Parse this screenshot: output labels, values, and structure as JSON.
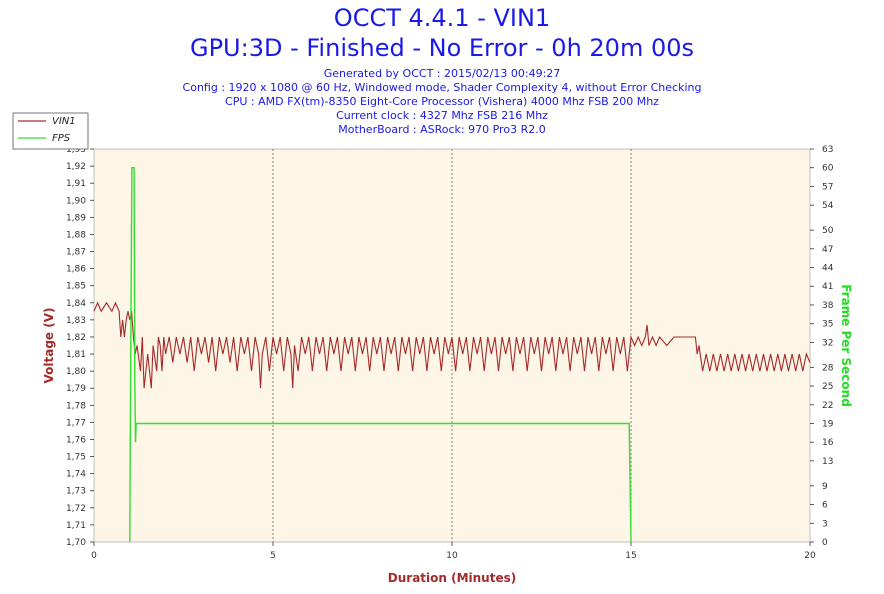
{
  "header": {
    "title": "OCCT 4.4.1 - VIN1",
    "subtitle": "GPU:3D - Finished - No Error - 0h 20m 00s",
    "info_lines": [
      "Generated by OCCT : 2015/02/13 00:49:27",
      "Config : 1920 x 1080 @ 60 Hz, Windowed mode, Shader Complexity 4, without Error Checking",
      "CPU : AMD FX(tm)-8350 Eight-Core Processor (Vishera) 4000 Mhz FSB 200 Mhz",
      "Current clock : 4327 Mhz FSB 216 Mhz",
      "MotherBoard : ASRock: 970 Pro3 R2.0"
    ]
  },
  "colors": {
    "vin1": "#a52a2a",
    "fps": "#33dd33",
    "plot_bg": "#fdf5e6",
    "grid": "#555555",
    "axis_title_left": "#a52a2a",
    "axis_title_right": "#22dd22",
    "axis_title_x": "#a52a2a",
    "title": "#1a1ae6"
  },
  "chart_data": {
    "type": "line",
    "title": "OCCT 4.4.1 - VIN1",
    "xlabel": "Duration (Minutes)",
    "ylabel": "Voltage (V)",
    "y2label": "Frame Per Second",
    "xlim": [
      0,
      20
    ],
    "ylim": [
      1.7,
      1.93
    ],
    "y2lim": [
      0,
      63
    ],
    "x_ticks": [
      "0",
      "5",
      "10",
      "15",
      "20"
    ],
    "y_ticks": [
      "1,70",
      "1,71",
      "1,72",
      "1,73",
      "1,74",
      "1,75",
      "1,76",
      "1,77",
      "1,78",
      "1,79",
      "1,80",
      "1,81",
      "1,82",
      "1,83",
      "1,84",
      "1,85",
      "1,86",
      "1,87",
      "1,88",
      "1,89",
      "1,90",
      "1,91",
      "1,92",
      "1,93"
    ],
    "y2_ticks": [
      "0",
      "3",
      "6",
      "9",
      "13",
      "16",
      "19",
      "22",
      "25",
      "28",
      "32",
      "35",
      "38",
      "41",
      "44",
      "47",
      "50",
      "54",
      "57",
      "60",
      "63"
    ],
    "grid": "vertical dashed at x ticks",
    "legend": [
      "VIN1",
      "FPS"
    ],
    "legend_position": "top-left, outside plot",
    "series": [
      {
        "name": "VIN1",
        "axis": "left",
        "points": [
          [
            0,
            1.835
          ],
          [
            0.1,
            1.84
          ],
          [
            0.2,
            1.835
          ],
          [
            0.35,
            1.84
          ],
          [
            0.5,
            1.835
          ],
          [
            0.6,
            1.84
          ],
          [
            0.7,
            1.835
          ],
          [
            0.75,
            1.82
          ],
          [
            0.8,
            1.83
          ],
          [
            0.85,
            1.82
          ],
          [
            0.9,
            1.83
          ],
          [
            0.95,
            1.835
          ],
          [
            1.0,
            1.83
          ],
          [
            1.05,
            1.835
          ],
          [
            1.1,
            1.82
          ],
          [
            1.15,
            1.81
          ],
          [
            1.2,
            1.815
          ],
          [
            1.3,
            1.8
          ],
          [
            1.35,
            1.82
          ],
          [
            1.4,
            1.79
          ],
          [
            1.5,
            1.81
          ],
          [
            1.55,
            1.8
          ],
          [
            1.6,
            1.79
          ],
          [
            1.65,
            1.815
          ],
          [
            1.75,
            1.8
          ],
          [
            1.8,
            1.82
          ],
          [
            1.85,
            1.815
          ],
          [
            1.9,
            1.8
          ],
          [
            1.95,
            1.82
          ],
          [
            2.0,
            1.81
          ],
          [
            2.1,
            1.82
          ],
          [
            2.2,
            1.805
          ],
          [
            2.3,
            1.82
          ],
          [
            2.4,
            1.81
          ],
          [
            2.5,
            1.82
          ],
          [
            2.6,
            1.805
          ],
          [
            2.7,
            1.82
          ],
          [
            2.8,
            1.8
          ],
          [
            2.9,
            1.82
          ],
          [
            3.0,
            1.81
          ],
          [
            3.1,
            1.82
          ],
          [
            3.2,
            1.805
          ],
          [
            3.3,
            1.82
          ],
          [
            3.4,
            1.8
          ],
          [
            3.5,
            1.82
          ],
          [
            3.6,
            1.81
          ],
          [
            3.7,
            1.82
          ],
          [
            3.8,
            1.805
          ],
          [
            3.9,
            1.82
          ],
          [
            4.0,
            1.8
          ],
          [
            4.1,
            1.82
          ],
          [
            4.2,
            1.81
          ],
          [
            4.3,
            1.82
          ],
          [
            4.4,
            1.8
          ],
          [
            4.5,
            1.82
          ],
          [
            4.6,
            1.81
          ],
          [
            4.65,
            1.79
          ],
          [
            4.7,
            1.81
          ],
          [
            4.8,
            1.82
          ],
          [
            4.9,
            1.8
          ],
          [
            5.0,
            1.82
          ],
          [
            5.1,
            1.81
          ],
          [
            5.2,
            1.82
          ],
          [
            5.3,
            1.8
          ],
          [
            5.4,
            1.82
          ],
          [
            5.5,
            1.81
          ],
          [
            5.55,
            1.79
          ],
          [
            5.6,
            1.815
          ],
          [
            5.7,
            1.8
          ],
          [
            5.8,
            1.82
          ],
          [
            5.9,
            1.81
          ],
          [
            6.0,
            1.82
          ],
          [
            6.1,
            1.8
          ],
          [
            6.2,
            1.82
          ],
          [
            6.3,
            1.81
          ],
          [
            6.4,
            1.82
          ],
          [
            6.5,
            1.8
          ],
          [
            6.6,
            1.82
          ],
          [
            6.7,
            1.81
          ],
          [
            6.8,
            1.82
          ],
          [
            6.9,
            1.8
          ],
          [
            7.0,
            1.82
          ],
          [
            7.1,
            1.81
          ],
          [
            7.2,
            1.82
          ],
          [
            7.3,
            1.8
          ],
          [
            7.4,
            1.82
          ],
          [
            7.5,
            1.81
          ],
          [
            7.6,
            1.82
          ],
          [
            7.7,
            1.8
          ],
          [
            7.8,
            1.82
          ],
          [
            7.9,
            1.81
          ],
          [
            8.0,
            1.82
          ],
          [
            8.1,
            1.8
          ],
          [
            8.2,
            1.82
          ],
          [
            8.3,
            1.81
          ],
          [
            8.4,
            1.82
          ],
          [
            8.5,
            1.8
          ],
          [
            8.6,
            1.82
          ],
          [
            8.7,
            1.81
          ],
          [
            8.8,
            1.82
          ],
          [
            8.9,
            1.8
          ],
          [
            9.0,
            1.82
          ],
          [
            9.1,
            1.81
          ],
          [
            9.2,
            1.82
          ],
          [
            9.3,
            1.8
          ],
          [
            9.4,
            1.82
          ],
          [
            9.5,
            1.81
          ],
          [
            9.6,
            1.82
          ],
          [
            9.7,
            1.8
          ],
          [
            9.8,
            1.82
          ],
          [
            9.9,
            1.81
          ],
          [
            10.0,
            1.82
          ],
          [
            10.1,
            1.8
          ],
          [
            10.2,
            1.82
          ],
          [
            10.3,
            1.81
          ],
          [
            10.4,
            1.82
          ],
          [
            10.5,
            1.8
          ],
          [
            10.6,
            1.82
          ],
          [
            10.7,
            1.81
          ],
          [
            10.8,
            1.82
          ],
          [
            10.9,
            1.8
          ],
          [
            11.0,
            1.82
          ],
          [
            11.1,
            1.81
          ],
          [
            11.2,
            1.82
          ],
          [
            11.3,
            1.8
          ],
          [
            11.4,
            1.82
          ],
          [
            11.5,
            1.81
          ],
          [
            11.6,
            1.82
          ],
          [
            11.7,
            1.8
          ],
          [
            11.8,
            1.82
          ],
          [
            11.9,
            1.81
          ],
          [
            12.0,
            1.82
          ],
          [
            12.1,
            1.8
          ],
          [
            12.2,
            1.82
          ],
          [
            12.3,
            1.81
          ],
          [
            12.4,
            1.82
          ],
          [
            12.5,
            1.8
          ],
          [
            12.6,
            1.82
          ],
          [
            12.7,
            1.81
          ],
          [
            12.8,
            1.82
          ],
          [
            12.9,
            1.8
          ],
          [
            13.0,
            1.82
          ],
          [
            13.1,
            1.81
          ],
          [
            13.2,
            1.82
          ],
          [
            13.3,
            1.8
          ],
          [
            13.4,
            1.82
          ],
          [
            13.5,
            1.81
          ],
          [
            13.6,
            1.82
          ],
          [
            13.7,
            1.8
          ],
          [
            13.8,
            1.82
          ],
          [
            13.9,
            1.81
          ],
          [
            14.0,
            1.82
          ],
          [
            14.1,
            1.8
          ],
          [
            14.2,
            1.82
          ],
          [
            14.3,
            1.81
          ],
          [
            14.4,
            1.82
          ],
          [
            14.5,
            1.8
          ],
          [
            14.6,
            1.82
          ],
          [
            14.7,
            1.81
          ],
          [
            14.8,
            1.82
          ],
          [
            14.9,
            1.8
          ],
          [
            15.0,
            1.82
          ],
          [
            15.1,
            1.815
          ],
          [
            15.2,
            1.82
          ],
          [
            15.3,
            1.815
          ],
          [
            15.4,
            1.82
          ],
          [
            15.45,
            1.827
          ],
          [
            15.5,
            1.815
          ],
          [
            15.6,
            1.82
          ],
          [
            15.7,
            1.815
          ],
          [
            15.8,
            1.82
          ],
          [
            16.0,
            1.815
          ],
          [
            16.2,
            1.82
          ],
          [
            16.4,
            1.82
          ],
          [
            16.6,
            1.82
          ],
          [
            16.8,
            1.82
          ],
          [
            16.85,
            1.81
          ],
          [
            16.9,
            1.815
          ],
          [
            17.0,
            1.8
          ],
          [
            17.1,
            1.81
          ],
          [
            17.2,
            1.8
          ],
          [
            17.3,
            1.81
          ],
          [
            17.4,
            1.8
          ],
          [
            17.5,
            1.81
          ],
          [
            17.6,
            1.8
          ],
          [
            17.7,
            1.81
          ],
          [
            17.8,
            1.8
          ],
          [
            17.9,
            1.81
          ],
          [
            18.0,
            1.8
          ],
          [
            18.1,
            1.81
          ],
          [
            18.2,
            1.8
          ],
          [
            18.3,
            1.81
          ],
          [
            18.4,
            1.8
          ],
          [
            18.5,
            1.81
          ],
          [
            18.6,
            1.8
          ],
          [
            18.7,
            1.81
          ],
          [
            18.8,
            1.8
          ],
          [
            18.9,
            1.81
          ],
          [
            19.0,
            1.8
          ],
          [
            19.1,
            1.81
          ],
          [
            19.2,
            1.8
          ],
          [
            19.3,
            1.81
          ],
          [
            19.4,
            1.8
          ],
          [
            19.5,
            1.81
          ],
          [
            19.6,
            1.8
          ],
          [
            19.7,
            1.81
          ],
          [
            19.8,
            1.8
          ],
          [
            19.9,
            1.81
          ],
          [
            20.0,
            1.805
          ]
        ]
      },
      {
        "name": "FPS",
        "axis": "right",
        "points": [
          [
            1.0,
            0
          ],
          [
            1.03,
            35
          ],
          [
            1.06,
            60
          ],
          [
            1.12,
            60
          ],
          [
            1.14,
            26
          ],
          [
            1.16,
            16
          ],
          [
            1.18,
            19
          ],
          [
            14.95,
            19
          ],
          [
            15.0,
            0
          ]
        ]
      }
    ]
  }
}
